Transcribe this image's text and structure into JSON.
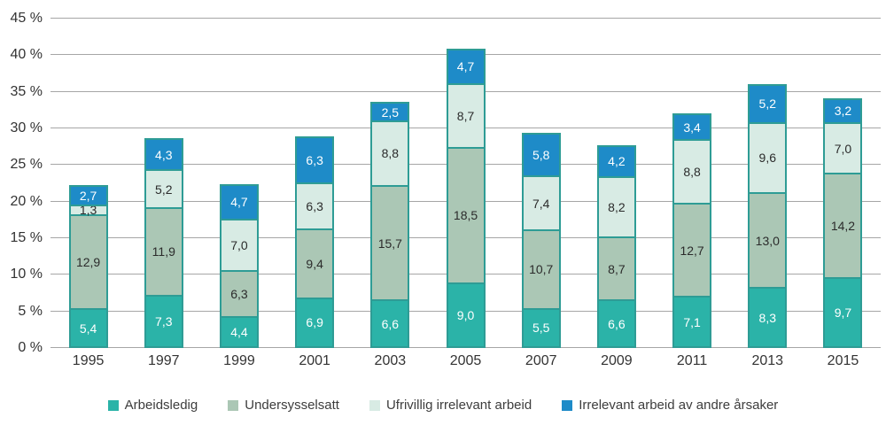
{
  "chart_data": {
    "type": "bar",
    "stacked": true,
    "title": "",
    "categories": [
      "1995",
      "1997",
      "1999",
      "2001",
      "2003",
      "2005",
      "2007",
      "2009",
      "2011",
      "2013",
      "2015"
    ],
    "series": [
      {
        "name": "Arbeidsledig",
        "color": "#2bb3a8",
        "label_color": "#ffffff",
        "values": [
          5.4,
          7.3,
          4.4,
          6.9,
          6.6,
          9.0,
          5.5,
          6.6,
          7.1,
          8.3,
          9.7
        ]
      },
      {
        "name": "Undersysselsatt",
        "color": "#abc7b5",
        "label_color": "#2b2b2b",
        "values": [
          12.9,
          11.9,
          6.3,
          9.4,
          15.7,
          18.5,
          10.7,
          8.7,
          12.7,
          13.0,
          14.2
        ]
      },
      {
        "name": "Ufrivillig irrelevant arbeid",
        "color": "#d8ebe4",
        "label_color": "#2b2b2b",
        "values": [
          1.3,
          5.2,
          7.0,
          6.3,
          8.8,
          8.7,
          7.4,
          8.2,
          8.8,
          9.6,
          7.0
        ]
      },
      {
        "name": "Irrelevant arbeid av andre årsaker",
        "color": "#1e8bc8",
        "label_color": "#ffffff",
        "values": [
          2.7,
          4.3,
          4.7,
          6.3,
          2.5,
          4.7,
          5.8,
          4.2,
          3.4,
          5.2,
          3.2
        ]
      }
    ],
    "ylim": [
      0,
      45
    ],
    "ytick_step": 5,
    "ytick_suffix": " %",
    "decimal_separator": ",",
    "grid": true,
    "legend_position": "bottom",
    "bar_border_color": "#2e9c95",
    "gridline_color": "#a6a6a6",
    "axis_label_color": "#333333"
  }
}
